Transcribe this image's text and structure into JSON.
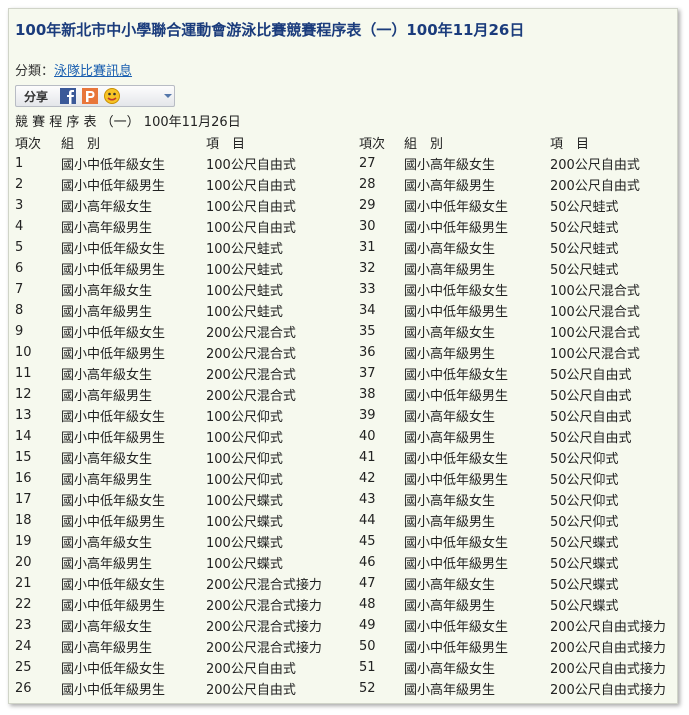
{
  "header": {
    "title": "100年新北市中小學聯合運動會游泳比賽競賽程序表（一）100年11月26日"
  },
  "category": {
    "label": "分類：",
    "link": "泳隊比賽訊息"
  },
  "share": {
    "label": "分享"
  },
  "subtitle": "競 賽 程 序 表 （一） 100年11月26日",
  "table": {
    "header": [
      "項次",
      "組　別",
      "項　目",
      "項次",
      "組　別",
      "項　目"
    ],
    "rows": [
      [
        "1",
        "國小中低年級女生",
        "100公尺自由式",
        "27",
        "國小高年級女生",
        "200公尺自由式"
      ],
      [
        "2",
        "國小中低年級男生",
        "100公尺自由式",
        "28",
        "國小高年級男生",
        "200公尺自由式"
      ],
      [
        "3",
        "國小高年級女生",
        "100公尺自由式",
        "29",
        "國小中低年級女生",
        "50公尺蛙式"
      ],
      [
        "4",
        "國小高年級男生",
        "100公尺自由式",
        "30",
        "國小中低年級男生",
        "50公尺蛙式"
      ],
      [
        "5",
        "國小中低年級女生",
        "100公尺蛙式",
        "31",
        "國小高年級女生",
        "50公尺蛙式"
      ],
      [
        "6",
        "國小中低年級男生",
        "100公尺蛙式",
        "32",
        "國小高年級男生",
        "50公尺蛙式"
      ],
      [
        "7",
        "國小高年級女生",
        "100公尺蛙式",
        "33",
        "國小中低年級女生",
        "100公尺混合式"
      ],
      [
        "8",
        "國小高年級男生",
        "100公尺蛙式",
        "34",
        "國小中低年級男生",
        "100公尺混合式"
      ],
      [
        "9",
        "國小中低年級女生",
        "200公尺混合式",
        "35",
        "國小高年級女生",
        "100公尺混合式"
      ],
      [
        "10",
        "國小中低年級男生",
        "200公尺混合式",
        "36",
        "國小高年級男生",
        "100公尺混合式"
      ],
      [
        "11",
        "國小高年級女生",
        "200公尺混合式",
        "37",
        "國小中低年級女生",
        "50公尺自由式"
      ],
      [
        "12",
        "國小高年級男生",
        "200公尺混合式",
        "38",
        "國小中低年級男生",
        "50公尺自由式"
      ],
      [
        "13",
        "國小中低年級女生",
        "100公尺仰式",
        "39",
        "國小高年級女生",
        "50公尺自由式"
      ],
      [
        "14",
        "國小中低年級男生",
        "100公尺仰式",
        "40",
        "國小高年級男生",
        "50公尺自由式"
      ],
      [
        "15",
        "國小高年級女生",
        "100公尺仰式",
        "41",
        "國小中低年級女生",
        "50公尺仰式"
      ],
      [
        "16",
        "國小高年級男生",
        "100公尺仰式",
        "42",
        "國小中低年級男生",
        "50公尺仰式"
      ],
      [
        "17",
        "國小中低年級女生",
        "100公尺蝶式",
        "43",
        "國小高年級女生",
        "50公尺仰式"
      ],
      [
        "18",
        "國小中低年級男生",
        "100公尺蝶式",
        "44",
        "國小高年級男生",
        "50公尺仰式"
      ],
      [
        "19",
        "國小高年級女生",
        "100公尺蝶式",
        "45",
        "國小中低年級女生",
        "50公尺蝶式"
      ],
      [
        "20",
        "國小高年級男生",
        "100公尺蝶式",
        "46",
        "國小中低年級男生",
        "50公尺蝶式"
      ],
      [
        "21",
        "國小中低年級女生",
        "200公尺混合式接力",
        "47",
        "國小高年級女生",
        "50公尺蝶式"
      ],
      [
        "22",
        "國小中低年級男生",
        "200公尺混合式接力",
        "48",
        "國小高年級男生",
        "50公尺蝶式"
      ],
      [
        "23",
        "國小高年級女生",
        "200公尺混合式接力",
        "49",
        "國小中低年級女生",
        "200公尺自由式接力"
      ],
      [
        "24",
        "國小高年級男生",
        "200公尺混合式接力",
        "50",
        "國小中低年級男生",
        "200公尺自由式接力"
      ],
      [
        "25",
        "國小中低年級女生",
        "200公尺自由式",
        "51",
        "國小高年級女生",
        "200公尺自由式接力"
      ],
      [
        "26",
        "國小中低年級男生",
        "200公尺自由式",
        "52",
        "國小高年級男生",
        "200公尺自由式接力"
      ]
    ]
  }
}
